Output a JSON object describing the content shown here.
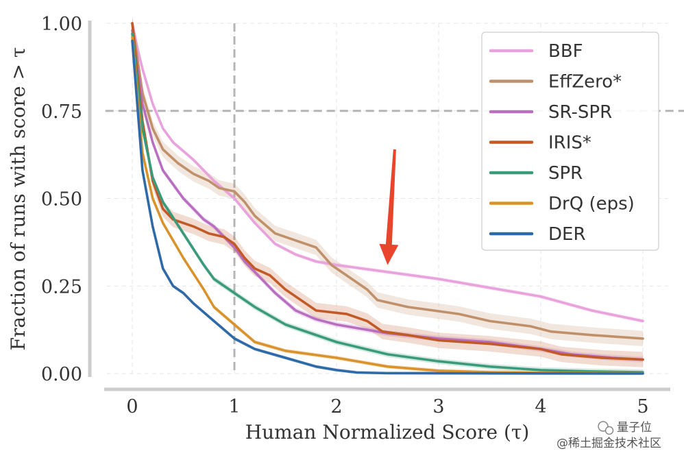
{
  "chart_data": {
    "type": "line",
    "title": "",
    "xlabel": "Human Normalized Score (τ)",
    "ylabel": "Fraction of runs with score > τ",
    "xlim": [
      -0.25,
      5.25
    ],
    "ylim": [
      0,
      1
    ],
    "xticks": [
      0,
      1,
      2,
      3,
      4,
      5
    ],
    "xtick_labels": [
      "0",
      "1",
      "2",
      "3",
      "4",
      "5"
    ],
    "yticks": [
      0,
      0.25,
      0.5,
      0.75,
      1
    ],
    "ytick_labels": [
      "0.00",
      "0.25",
      "0.50",
      "0.75",
      "1.00"
    ],
    "grid": true,
    "legend_position": "top-right",
    "reference_lines": [
      {
        "orientation": "vertical",
        "value": 1
      },
      {
        "orientation": "horizontal",
        "value": 0.75
      }
    ],
    "annotation": {
      "type": "arrow",
      "color": "#e8452c",
      "from": [
        2.57,
        0.64
      ],
      "to": [
        2.5,
        0.31
      ]
    },
    "series": [
      {
        "name": "BBF",
        "color": "#e8a2dc",
        "band": 0.006,
        "points": [
          [
            0,
            1
          ],
          [
            0.05,
            0.93
          ],
          [
            0.1,
            0.87
          ],
          [
            0.2,
            0.77
          ],
          [
            0.3,
            0.7
          ],
          [
            0.4,
            0.66
          ],
          [
            0.6,
            0.61
          ],
          [
            0.8,
            0.55
          ],
          [
            1.0,
            0.5
          ],
          [
            1.2,
            0.43
          ],
          [
            1.4,
            0.37
          ],
          [
            1.6,
            0.34
          ],
          [
            1.8,
            0.32
          ],
          [
            2.0,
            0.31
          ],
          [
            2.5,
            0.29
          ],
          [
            3.0,
            0.27
          ],
          [
            3.5,
            0.245
          ],
          [
            4.0,
            0.22
          ],
          [
            4.5,
            0.18
          ],
          [
            5.0,
            0.15
          ]
        ]
      },
      {
        "name": "EffZero*",
        "color": "#c0906b",
        "band": 0.022,
        "points": [
          [
            0,
            1
          ],
          [
            0.1,
            0.8
          ],
          [
            0.2,
            0.7
          ],
          [
            0.3,
            0.64
          ],
          [
            0.45,
            0.6
          ],
          [
            0.6,
            0.57
          ],
          [
            0.75,
            0.55
          ],
          [
            0.85,
            0.53
          ],
          [
            1.0,
            0.52
          ],
          [
            1.1,
            0.49
          ],
          [
            1.2,
            0.45
          ],
          [
            1.4,
            0.4
          ],
          [
            1.6,
            0.38
          ],
          [
            1.8,
            0.36
          ],
          [
            1.95,
            0.31
          ],
          [
            2.1,
            0.28
          ],
          [
            2.3,
            0.24
          ],
          [
            2.4,
            0.21
          ],
          [
            2.7,
            0.19
          ],
          [
            3.2,
            0.17
          ],
          [
            3.5,
            0.15
          ],
          [
            3.9,
            0.135
          ],
          [
            4.1,
            0.12
          ],
          [
            4.5,
            0.11
          ],
          [
            5.0,
            0.1
          ]
        ]
      },
      {
        "name": "SR-SPR",
        "color": "#b86fbf",
        "band": 0.008,
        "points": [
          [
            0,
            0.98
          ],
          [
            0.1,
            0.77
          ],
          [
            0.2,
            0.66
          ],
          [
            0.3,
            0.58
          ],
          [
            0.4,
            0.54
          ],
          [
            0.5,
            0.5
          ],
          [
            0.6,
            0.47
          ],
          [
            0.7,
            0.44
          ],
          [
            0.8,
            0.42
          ],
          [
            0.9,
            0.39
          ],
          [
            1.0,
            0.36
          ],
          [
            1.1,
            0.32
          ],
          [
            1.2,
            0.29
          ],
          [
            1.4,
            0.23
          ],
          [
            1.6,
            0.18
          ],
          [
            1.8,
            0.155
          ],
          [
            2.0,
            0.14
          ],
          [
            2.2,
            0.13
          ],
          [
            2.5,
            0.115
          ],
          [
            3.0,
            0.1
          ],
          [
            3.5,
            0.09
          ],
          [
            4.0,
            0.07
          ],
          [
            4.3,
            0.055
          ],
          [
            4.7,
            0.045
          ],
          [
            5.0,
            0.04
          ]
        ]
      },
      {
        "name": "IRIS*",
        "color": "#c25a28",
        "band": 0.022,
        "points": [
          [
            0,
            1
          ],
          [
            0.1,
            0.72
          ],
          [
            0.2,
            0.55
          ],
          [
            0.3,
            0.47
          ],
          [
            0.4,
            0.44
          ],
          [
            0.6,
            0.42
          ],
          [
            0.75,
            0.4
          ],
          [
            0.9,
            0.39
          ],
          [
            1.0,
            0.37
          ],
          [
            1.1,
            0.33
          ],
          [
            1.2,
            0.3
          ],
          [
            1.35,
            0.28
          ],
          [
            1.5,
            0.24
          ],
          [
            1.65,
            0.21
          ],
          [
            1.8,
            0.18
          ],
          [
            2.1,
            0.17
          ],
          [
            2.3,
            0.15
          ],
          [
            2.45,
            0.12
          ],
          [
            2.7,
            0.11
          ],
          [
            3.0,
            0.095
          ],
          [
            3.5,
            0.085
          ],
          [
            4.0,
            0.07
          ],
          [
            4.2,
            0.055
          ],
          [
            4.6,
            0.045
          ],
          [
            5.0,
            0.04
          ]
        ]
      },
      {
        "name": "SPR",
        "color": "#3a9a79",
        "band": 0.008,
        "points": [
          [
            0,
            0.97
          ],
          [
            0.1,
            0.7
          ],
          [
            0.2,
            0.56
          ],
          [
            0.3,
            0.49
          ],
          [
            0.5,
            0.4
          ],
          [
            0.7,
            0.31
          ],
          [
            0.8,
            0.27
          ],
          [
            1.0,
            0.23
          ],
          [
            1.2,
            0.19
          ],
          [
            1.5,
            0.14
          ],
          [
            2.0,
            0.09
          ],
          [
            2.5,
            0.055
          ],
          [
            3.0,
            0.035
          ],
          [
            3.5,
            0.02
          ],
          [
            4.0,
            0.01
          ],
          [
            4.5,
            0.006
          ],
          [
            5.0,
            0.004
          ]
        ]
      },
      {
        "name": "DrQ (eps)",
        "color": "#d9932c",
        "band": 0.006,
        "points": [
          [
            0,
            0.96
          ],
          [
            0.1,
            0.63
          ],
          [
            0.2,
            0.5
          ],
          [
            0.3,
            0.43
          ],
          [
            0.4,
            0.38
          ],
          [
            0.5,
            0.33
          ],
          [
            0.7,
            0.24
          ],
          [
            0.8,
            0.19
          ],
          [
            1.0,
            0.14
          ],
          [
            1.2,
            0.09
          ],
          [
            1.5,
            0.065
          ],
          [
            2.0,
            0.045
          ],
          [
            2.5,
            0.02
          ],
          [
            3.0,
            0.008
          ],
          [
            3.5,
            0.004
          ],
          [
            4.0,
            0.002
          ],
          [
            5.0,
            0.001
          ]
        ]
      },
      {
        "name": "DER",
        "color": "#2f6aa8",
        "band": 0.005,
        "points": [
          [
            0,
            0.95
          ],
          [
            0.1,
            0.58
          ],
          [
            0.2,
            0.42
          ],
          [
            0.3,
            0.3
          ],
          [
            0.4,
            0.25
          ],
          [
            0.5,
            0.23
          ],
          [
            0.6,
            0.2
          ],
          [
            0.8,
            0.15
          ],
          [
            1.0,
            0.1
          ],
          [
            1.2,
            0.07
          ],
          [
            1.5,
            0.045
          ],
          [
            1.8,
            0.02
          ],
          [
            2.0,
            0.01
          ],
          [
            2.2,
            0.003
          ],
          [
            2.5,
            0.001
          ],
          [
            5.0,
            0
          ]
        ]
      }
    ]
  },
  "watermark": {
    "line1": "量子位",
    "line2": "@稀土掘金技术社区"
  }
}
